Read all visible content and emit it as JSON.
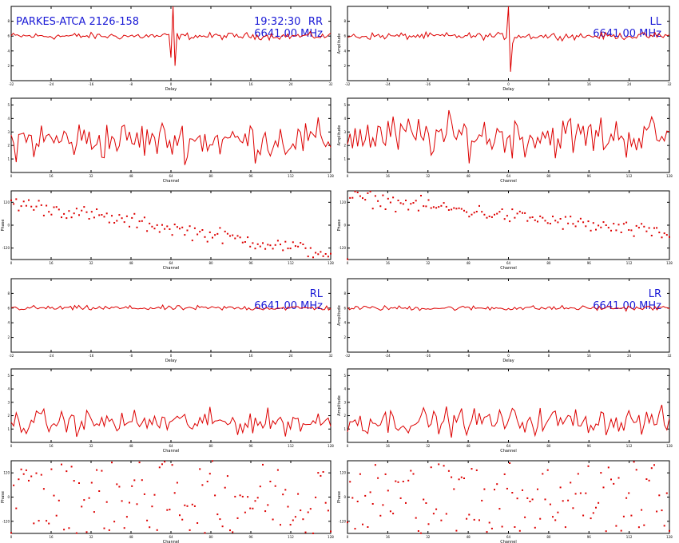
{
  "header": {
    "source": "PARKES-ATCA 2126-158",
    "time": "19:32:30"
  },
  "colors": {
    "trace": "#dd0000",
    "annotation": "#1a1ad6",
    "axes": "#000000"
  },
  "chart_data": [
    {
      "type": "line",
      "group": "RR",
      "kind": "delay",
      "stokes": "RR",
      "freq": "6641.00 MHz",
      "xlabel": "Delay",
      "ylabel": "",
      "xlim": [
        -32,
        32
      ],
      "ylim": [
        0,
        10
      ],
      "x_ticks": [
        "-32",
        "-24",
        "-16",
        "-8",
        "0",
        "8",
        "16",
        "24",
        "32"
      ],
      "y_ticks": [
        "2",
        "4",
        "6",
        "8"
      ],
      "series": [
        {
          "baseline": 6.0,
          "noise": 0.35,
          "spike_index": 78,
          "spike_values": [
            3.1,
            10.5,
            2.0
          ],
          "n": 157
        }
      ]
    },
    {
      "type": "line",
      "group": "LL",
      "kind": "delay",
      "stokes": "LL",
      "freq": "6641.00 MHz",
      "xlabel": "Delay",
      "ylabel": "Amplitude",
      "xlim": [
        -32,
        32
      ],
      "ylim": [
        0,
        10
      ],
      "x_ticks": [
        "-32",
        "-24",
        "-16",
        "-8",
        "0",
        "8",
        "16",
        "24",
        "32"
      ],
      "y_ticks": [
        "2",
        "4",
        "6",
        "8"
      ],
      "series": [
        {
          "baseline": 6.0,
          "noise": 0.35,
          "spike_index": 78,
          "spike_values": [
            10.2,
            1.2,
            5.0
          ],
          "n": 157
        }
      ]
    },
    {
      "type": "line",
      "group": "RR",
      "kind": "amp",
      "xlabel": "Channel",
      "ylabel": "",
      "xlim": [
        0,
        128
      ],
      "ylim": [
        0,
        5.5
      ],
      "x_ticks": [
        "0",
        "16",
        "32",
        "48",
        "64",
        "80",
        "96",
        "112",
        "128"
      ],
      "y_ticks": [
        "1",
        "2",
        "3",
        "4",
        "5"
      ],
      "series": [
        {
          "baseline": 2.4,
          "noise": 1.1,
          "n": 128
        }
      ]
    },
    {
      "type": "line",
      "group": "LL",
      "kind": "amp",
      "xlabel": "Channel",
      "ylabel": "Amplitude",
      "xlim": [
        0,
        128
      ],
      "ylim": [
        0,
        5.5
      ],
      "x_ticks": [
        "0",
        "16",
        "32",
        "48",
        "64",
        "80",
        "96",
        "112",
        "128"
      ],
      "y_ticks": [
        "1",
        "2",
        "3",
        "4",
        "5"
      ],
      "series": [
        {
          "baseline": 2.7,
          "noise": 1.2,
          "n": 128
        }
      ]
    },
    {
      "type": "scatter",
      "group": "RR",
      "kind": "phase",
      "xlabel": "Channel",
      "ylabel": "Phase",
      "xlim": [
        0,
        128
      ],
      "ylim": [
        -180,
        180
      ],
      "x_ticks": [
        "0",
        "16",
        "32",
        "48",
        "64",
        "80",
        "96",
        "112",
        "128"
      ],
      "y_ticks": [
        "-120",
        "0",
        "120"
      ],
      "series": [
        {
          "mode": "slope",
          "start": 120,
          "end": -150,
          "n": 128
        }
      ]
    },
    {
      "type": "scatter",
      "group": "LL",
      "kind": "phase",
      "xlabel": "Channel",
      "ylabel": "Phase",
      "xlim": [
        0,
        128
      ],
      "ylim": [
        -180,
        180
      ],
      "x_ticks": [
        "0",
        "16",
        "32",
        "48",
        "64",
        "80",
        "96",
        "112",
        "128"
      ],
      "y_ticks": [
        "-120",
        "0",
        "120"
      ],
      "series": [
        {
          "mode": "slope",
          "start": 150,
          "end": -50,
          "n": 128
        }
      ]
    },
    {
      "type": "line",
      "group": "RL",
      "kind": "delay",
      "stokes": "RL",
      "freq": "6641.00 MHz",
      "xlabel": "Delay",
      "ylabel": "",
      "xlim": [
        -32,
        32
      ],
      "ylim": [
        0,
        10
      ],
      "x_ticks": [
        "-32",
        "-24",
        "-16",
        "-8",
        "0",
        "8",
        "16",
        "24",
        "32"
      ],
      "y_ticks": [
        "2",
        "4",
        "6",
        "8"
      ],
      "series": [
        {
          "baseline": 6.0,
          "noise": 0.25,
          "n": 157
        }
      ]
    },
    {
      "type": "line",
      "group": "LR",
      "kind": "delay",
      "stokes": "LR",
      "freq": "6641.00 MHz",
      "xlabel": "Delay",
      "ylabel": "Amplitude",
      "xlim": [
        -32,
        32
      ],
      "ylim": [
        0,
        10
      ],
      "x_ticks": [
        "-32",
        "-24",
        "-16",
        "-8",
        "0",
        "8",
        "16",
        "24",
        "32"
      ],
      "y_ticks": [
        "2",
        "4",
        "6",
        "8"
      ],
      "series": [
        {
          "baseline": 6.0,
          "noise": 0.25,
          "n": 157
        }
      ]
    },
    {
      "type": "line",
      "group": "RL",
      "kind": "amp",
      "xlabel": "Channel",
      "ylabel": "",
      "xlim": [
        0,
        128
      ],
      "ylim": [
        0,
        5.5
      ],
      "x_ticks": [
        "0",
        "16",
        "32",
        "48",
        "64",
        "80",
        "96",
        "112",
        "128"
      ],
      "y_ticks": [
        "1",
        "2",
        "3",
        "4",
        "5"
      ],
      "series": [
        {
          "baseline": 1.5,
          "noise": 0.7,
          "n": 128
        }
      ]
    },
    {
      "type": "line",
      "group": "LR",
      "kind": "amp",
      "xlabel": "Channel",
      "ylabel": "Amplitude",
      "xlim": [
        0,
        128
      ],
      "ylim": [
        0,
        5.5
      ],
      "x_ticks": [
        "0",
        "16",
        "32",
        "48",
        "64",
        "80",
        "96",
        "112",
        "128"
      ],
      "y_ticks": [
        "1",
        "2",
        "3",
        "4",
        "5"
      ],
      "series": [
        {
          "baseline": 1.6,
          "noise": 0.75,
          "n": 128
        }
      ]
    },
    {
      "type": "scatter",
      "group": "RL",
      "kind": "phase",
      "xlabel": "Channel",
      "ylabel": "Phase",
      "xlim": [
        0,
        128
      ],
      "ylim": [
        -180,
        180
      ],
      "x_ticks": [
        "0",
        "16",
        "32",
        "48",
        "64",
        "80",
        "96",
        "112",
        "128"
      ],
      "y_ticks": [
        "-120",
        "0",
        "120"
      ],
      "series": [
        {
          "mode": "random",
          "n": 128
        }
      ]
    },
    {
      "type": "scatter",
      "group": "LR",
      "kind": "phase",
      "xlabel": "Channel",
      "ylabel": "Phase",
      "xlim": [
        0,
        128
      ],
      "ylim": [
        -180,
        180
      ],
      "x_ticks": [
        "0",
        "16",
        "32",
        "48",
        "64",
        "80",
        "96",
        "112",
        "128"
      ],
      "y_ticks": [
        "-120",
        "0",
        "120"
      ],
      "series": [
        {
          "mode": "random",
          "n": 128
        }
      ]
    }
  ]
}
